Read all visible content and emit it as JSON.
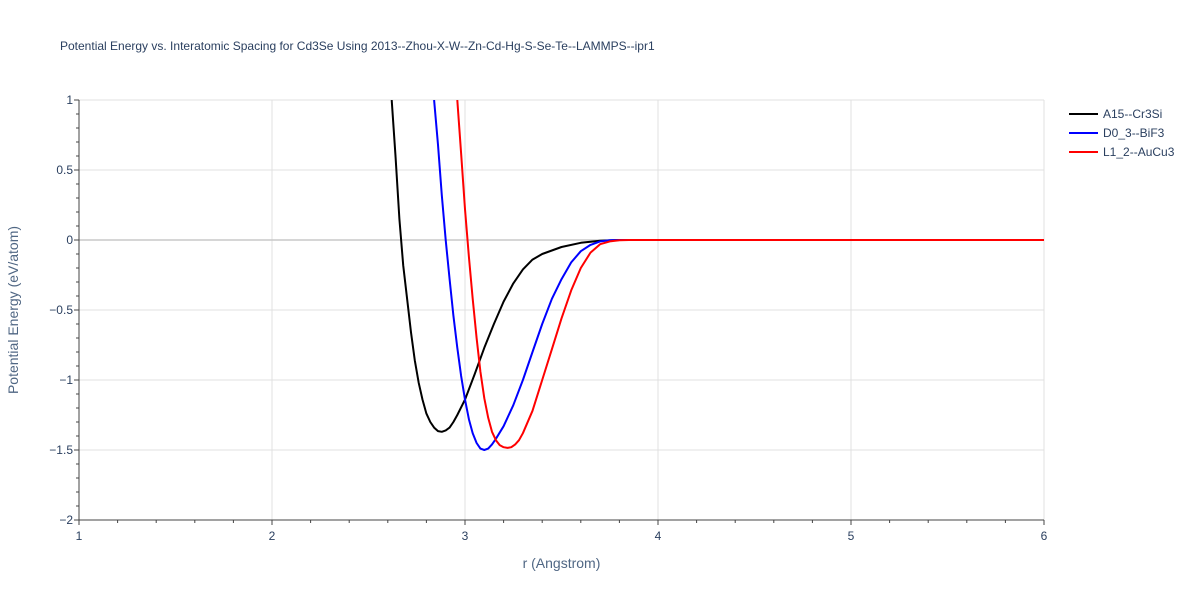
{
  "chart_data": {
    "type": "line",
    "title": "Potential Energy vs. Interatomic Spacing for Cd3Se Using 2013--Zhou-X-W--Zn-Cd-Hg-S-Se-Te--LAMMPS--ipr1",
    "xlabel": "r (Angstrom)",
    "ylabel": "Potential Energy (eV/atom)",
    "xlim": [
      1,
      6
    ],
    "ylim": [
      -2,
      1
    ],
    "xticks": [
      1,
      2,
      3,
      4,
      5,
      6
    ],
    "xtick_labels": [
      "1",
      "2",
      "3",
      "4",
      "5",
      "6"
    ],
    "yticks": [
      -2,
      -1.5,
      -1,
      -0.5,
      0,
      0.5,
      1
    ],
    "ytick_labels": [
      "−2",
      "−1.5",
      "−1",
      "−0.5",
      "0",
      "0.5",
      "1"
    ],
    "grid": true,
    "legend_position": "top-right",
    "series": [
      {
        "name": "A15--Cr3Si",
        "color": "#000000",
        "x": [
          2.62,
          2.64,
          2.66,
          2.68,
          2.7,
          2.72,
          2.74,
          2.76,
          2.78,
          2.8,
          2.82,
          2.84,
          2.86,
          2.88,
          2.9,
          2.92,
          2.94,
          2.96,
          3.0,
          3.05,
          3.1,
          3.15,
          3.2,
          3.25,
          3.3,
          3.35,
          3.4,
          3.5,
          3.6,
          3.7,
          3.8,
          4.0,
          5.0,
          6.0
        ],
        "y": [
          1.0,
          0.6,
          0.15,
          -0.18,
          -0.42,
          -0.66,
          -0.86,
          -1.02,
          -1.14,
          -1.24,
          -1.3,
          -1.34,
          -1.365,
          -1.37,
          -1.36,
          -1.34,
          -1.3,
          -1.25,
          -1.14,
          -0.96,
          -0.77,
          -0.6,
          -0.44,
          -0.31,
          -0.21,
          -0.14,
          -0.1,
          -0.05,
          -0.02,
          -0.005,
          0,
          0,
          0,
          0
        ]
      },
      {
        "name": "D0_3--BiF3",
        "color": "#0000ff",
        "x": [
          2.84,
          2.86,
          2.88,
          2.9,
          2.92,
          2.94,
          2.96,
          2.98,
          3.0,
          3.02,
          3.04,
          3.06,
          3.08,
          3.1,
          3.12,
          3.14,
          3.16,
          3.2,
          3.25,
          3.3,
          3.35,
          3.4,
          3.45,
          3.5,
          3.55,
          3.6,
          3.65,
          3.7,
          3.75,
          3.8,
          3.85,
          4.0,
          5.0,
          6.0
        ],
        "y": [
          1.0,
          0.68,
          0.32,
          0.0,
          -0.28,
          -0.54,
          -0.77,
          -0.97,
          -1.14,
          -1.28,
          -1.38,
          -1.45,
          -1.49,
          -1.5,
          -1.49,
          -1.46,
          -1.42,
          -1.33,
          -1.18,
          -1.0,
          -0.8,
          -0.6,
          -0.42,
          -0.28,
          -0.16,
          -0.08,
          -0.035,
          -0.01,
          -0.002,
          0,
          0,
          0,
          0,
          0
        ]
      },
      {
        "name": "L1_2--AuCu3",
        "color": "#ff0000",
        "x": [
          2.96,
          2.98,
          3.0,
          3.02,
          3.04,
          3.06,
          3.08,
          3.1,
          3.12,
          3.14,
          3.16,
          3.18,
          3.2,
          3.22,
          3.24,
          3.26,
          3.28,
          3.3,
          3.35,
          3.4,
          3.45,
          3.5,
          3.55,
          3.6,
          3.65,
          3.7,
          3.75,
          3.8,
          3.85,
          4.0,
          5.0,
          6.0
        ],
        "y": [
          1.0,
          0.62,
          0.22,
          -0.12,
          -0.42,
          -0.7,
          -0.94,
          -1.13,
          -1.27,
          -1.37,
          -1.43,
          -1.465,
          -1.48,
          -1.485,
          -1.48,
          -1.46,
          -1.43,
          -1.38,
          -1.22,
          -1.0,
          -0.78,
          -0.56,
          -0.36,
          -0.2,
          -0.09,
          -0.03,
          -0.01,
          -0.002,
          0,
          0,
          0,
          0
        ]
      }
    ]
  }
}
